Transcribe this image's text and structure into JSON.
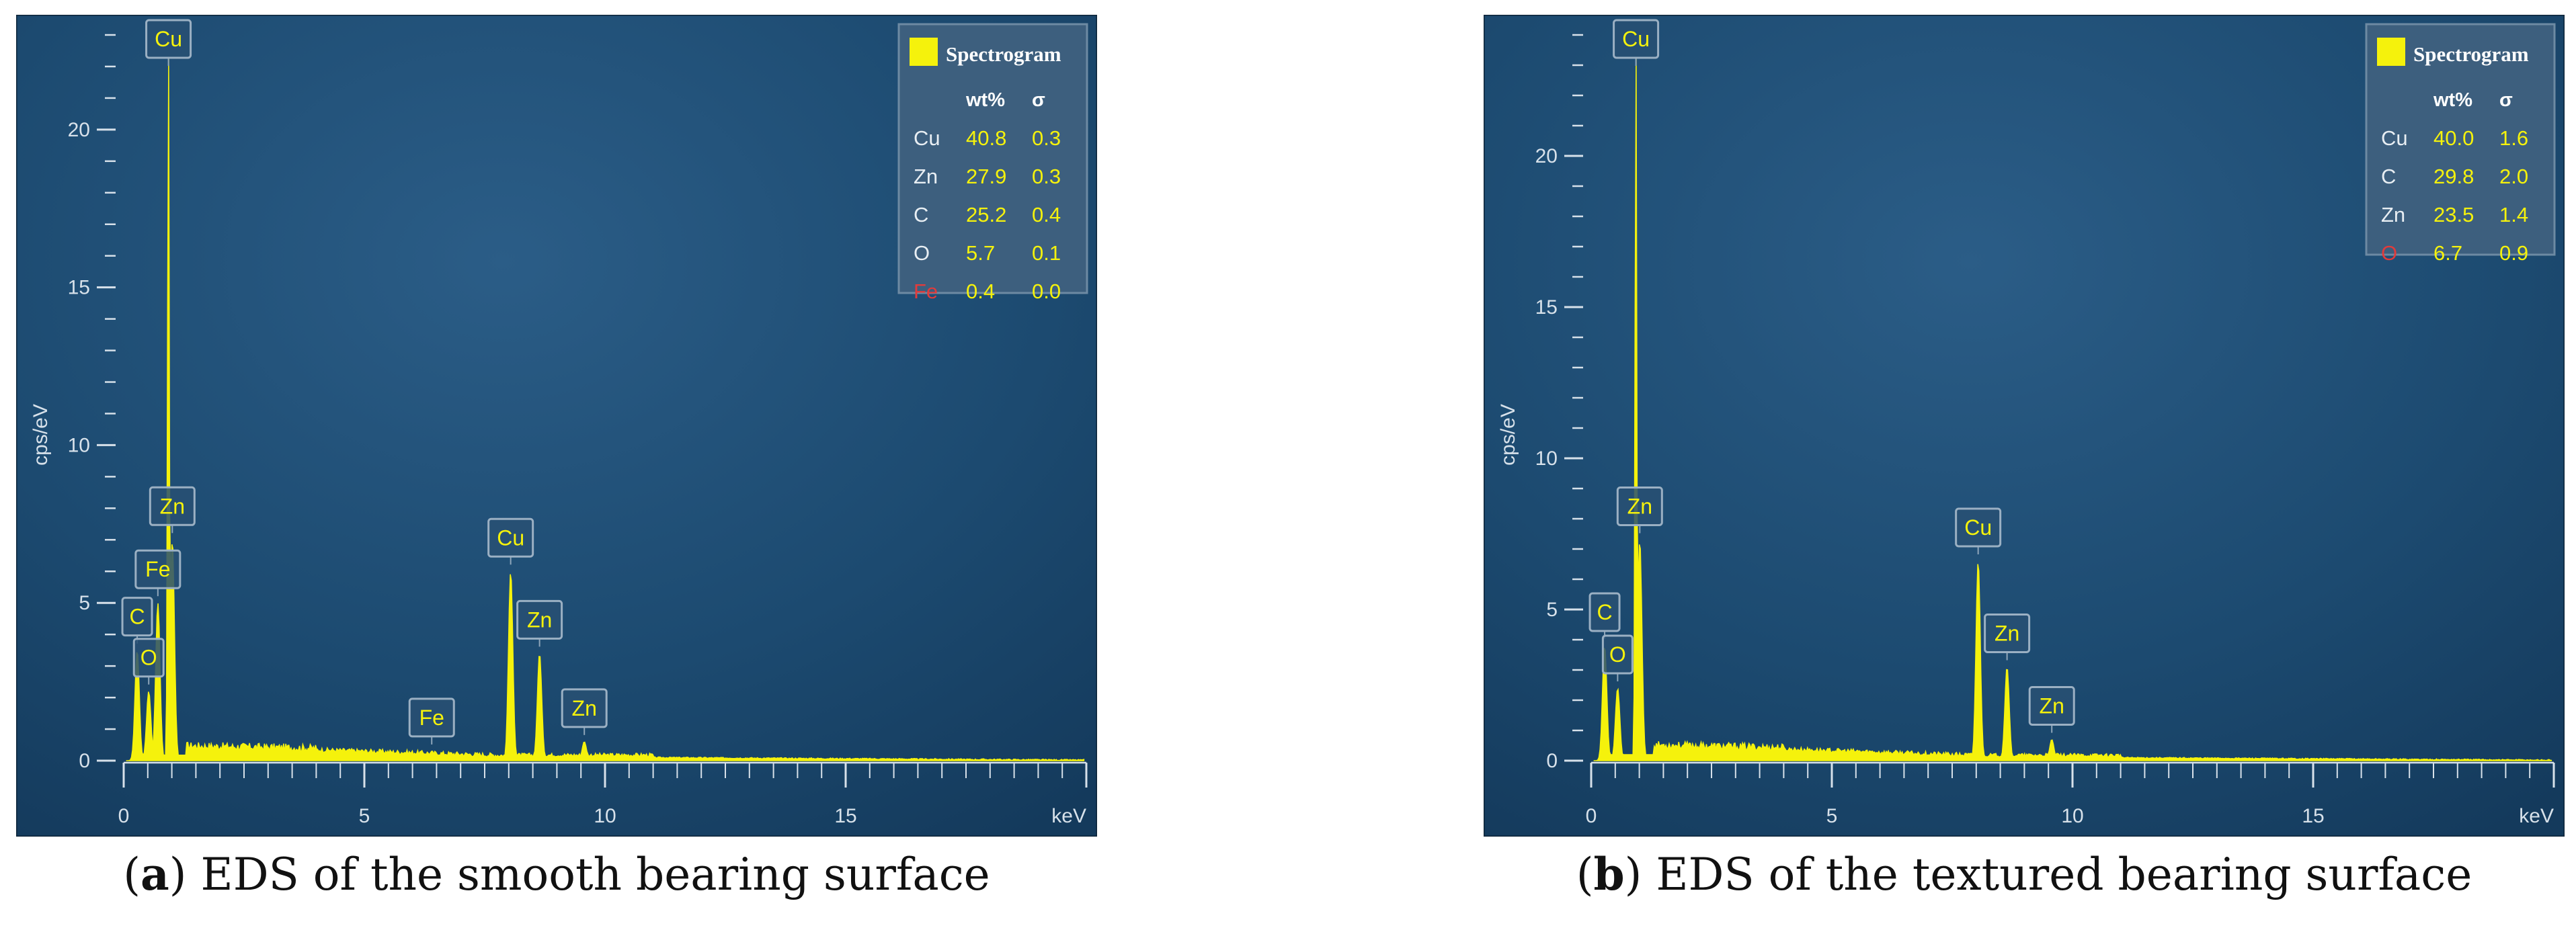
{
  "chart_data": [
    {
      "type": "area",
      "panel_letter": "a",
      "caption": "EDS of the smooth bearing surface",
      "xlabel": "keV",
      "ylabel": "cps/eV",
      "xlim": [
        0,
        20
      ],
      "ylim": [
        0,
        23
      ],
      "x_ticks": [
        0,
        5,
        10,
        15
      ],
      "y_ticks": [
        0,
        5,
        10,
        15,
        20
      ],
      "grid": false,
      "colors": {
        "background": "#1c4a70",
        "spectrum": "#f5f20c",
        "axis": "#d7e1ea",
        "legend_bg": "#3d5f7e",
        "highlight": "#e23b3b"
      },
      "legend": {
        "title": "Spectrogram",
        "columns": [
          "wt%",
          "σ"
        ],
        "placement": "top-right",
        "rows": [
          {
            "element": "Cu",
            "wt": "40.8",
            "sigma": "0.3",
            "highlight": false
          },
          {
            "element": "Zn",
            "wt": "27.9",
            "sigma": "0.3",
            "highlight": false
          },
          {
            "element": "C",
            "wt": "25.2",
            "sigma": "0.4",
            "highlight": false
          },
          {
            "element": "O",
            "wt": "5.7",
            "sigma": "0.1",
            "highlight": false
          },
          {
            "element": "Fe",
            "wt": "0.4",
            "sigma": "0.0",
            "highlight": true
          }
        ]
      },
      "peaks": [
        {
          "label": "Cu",
          "x": 0.93,
          "y": 23.0
        },
        {
          "label": "Zn",
          "x": 1.01,
          "y": 7.0
        },
        {
          "label": "Fe",
          "x": 0.71,
          "y": 5.0
        },
        {
          "label": "C",
          "x": 0.28,
          "y": 3.5
        },
        {
          "label": "O",
          "x": 0.52,
          "y": 2.2
        },
        {
          "label": "Fe",
          "x": 6.4,
          "y": 0.3
        },
        {
          "label": "Cu",
          "x": 8.04,
          "y": 6.0
        },
        {
          "label": "Zn",
          "x": 8.64,
          "y": 3.4
        },
        {
          "label": "Zn",
          "x": 9.57,
          "y": 0.6
        }
      ],
      "background_level": 0.35
    },
    {
      "type": "area",
      "panel_letter": "b",
      "caption": "EDS of the textured bearing surface",
      "xlabel": "keV",
      "ylabel": "cps/eV",
      "xlim": [
        0,
        20
      ],
      "ylim": [
        0,
        24
      ],
      "x_ticks": [
        0,
        5,
        10,
        15
      ],
      "y_ticks": [
        0,
        5,
        10,
        15,
        20
      ],
      "grid": false,
      "colors": {
        "background": "#1c4a70",
        "spectrum": "#f5f20c",
        "axis": "#d7e1ea",
        "legend_bg": "#3d5f7e",
        "highlight": "#e23b3b"
      },
      "legend": {
        "title": "Spectrogram",
        "columns": [
          "wt%",
          "σ"
        ],
        "placement": "top-right",
        "rows": [
          {
            "element": "Cu",
            "wt": "40.0",
            "sigma": "1.6",
            "highlight": false
          },
          {
            "element": "C",
            "wt": "29.8",
            "sigma": "2.0",
            "highlight": false
          },
          {
            "element": "Zn",
            "wt": "23.5",
            "sigma": "1.4",
            "highlight": false
          },
          {
            "element": "O",
            "wt": "6.7",
            "sigma": "0.9",
            "highlight": true
          }
        ]
      },
      "peaks": [
        {
          "label": "Cu",
          "x": 0.93,
          "y": 24.0
        },
        {
          "label": "Zn",
          "x": 1.01,
          "y": 7.3
        },
        {
          "label": "C",
          "x": 0.28,
          "y": 3.8
        },
        {
          "label": "O",
          "x": 0.55,
          "y": 2.4
        },
        {
          "label": "Cu",
          "x": 8.04,
          "y": 6.6
        },
        {
          "label": "Zn",
          "x": 8.64,
          "y": 3.1
        },
        {
          "label": "Zn",
          "x": 9.57,
          "y": 0.7
        }
      ],
      "background_level": 0.4
    }
  ]
}
